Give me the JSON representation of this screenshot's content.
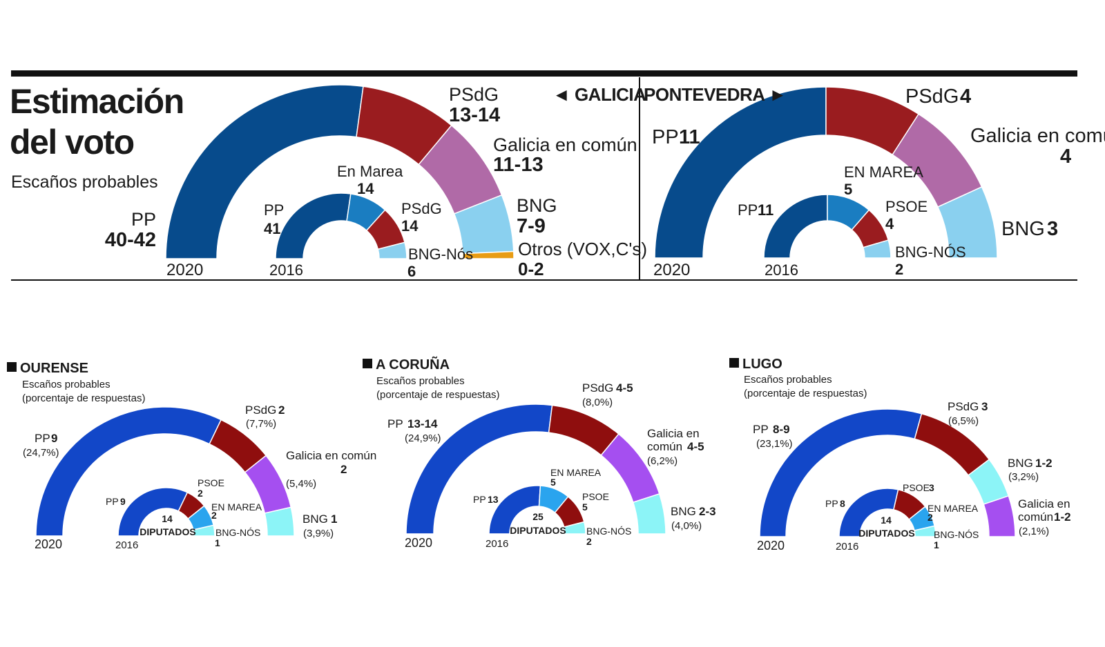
{
  "header": {
    "title_line1": "Estimación",
    "title_line2": "del voto",
    "subtitle": "Escaños probables"
  },
  "colors": {
    "pp": "#074b8c",
    "psdg": "#9a1c1f",
    "galicia": "#b06aa7",
    "bng": "#8ad0ef",
    "en_marea": "#1a7dc1",
    "otros": "#e89c14",
    "p_pp": "#1247c8",
    "p_psdg": "#8f0e0e",
    "p_galicia": "#a54ff0",
    "p_bng": "#8cf4f7",
    "p_en_marea": "#2aa4ee"
  },
  "chart_data": [
    {
      "type": "semicircle",
      "region": "GALICIA",
      "region_label": "◄ GALICIA",
      "year_outer": "2020",
      "year_inner": "2016",
      "outer": [
        {
          "name": "PP",
          "label": "40-42",
          "value": 41
        },
        {
          "name": "PSdG",
          "label": "13-14",
          "value": 13.5
        },
        {
          "name": "Galicia en común",
          "label": "11-13",
          "value": 12
        },
        {
          "name": "BNG",
          "label": "7-9",
          "value": 8
        },
        {
          "name": "Otros (VOX,C's)",
          "label": "0-2",
          "value": 1
        }
      ],
      "inner": [
        {
          "name": "PP",
          "label": "41",
          "value": 41
        },
        {
          "name": "En Marea",
          "label": "14",
          "value": 14
        },
        {
          "name": "PSdG",
          "label": "14",
          "value": 14
        },
        {
          "name": "BNG-Nós",
          "label": "6",
          "value": 6
        }
      ]
    },
    {
      "type": "semicircle",
      "region": "PONTEVEDRA",
      "region_label": "PONTEVEDRA ►",
      "year_outer": "2020",
      "year_inner": "2016",
      "outer": [
        {
          "name": "PP",
          "label": "11",
          "value": 11
        },
        {
          "name": "PSdG",
          "label": "4",
          "value": 4
        },
        {
          "name": "Galicia en común",
          "label": "4",
          "value": 4
        },
        {
          "name": "BNG",
          "label": "3",
          "value": 3
        }
      ],
      "inner": [
        {
          "name": "PP",
          "label": "11",
          "value": 11
        },
        {
          "name": "EN MAREA",
          "label": "5",
          "value": 5
        },
        {
          "name": "PSOE",
          "label": "4",
          "value": 4
        },
        {
          "name": "BNG-NÓS",
          "label": "2",
          "value": 2
        }
      ]
    },
    {
      "type": "semicircle",
      "region": "OURENSE",
      "subtitle1": "Escaños probables",
      "subtitle2": "(porcentaje de respuestas)",
      "year_outer": "2020",
      "year_inner": "2016",
      "diputados_count": "14",
      "diputados_label": "DIPUTADOS",
      "outer": [
        {
          "name": "PP",
          "label": "9",
          "pct": "(24,7%)",
          "value": 9
        },
        {
          "name": "PSdG",
          "label": "2",
          "pct": "(7,7%)",
          "value": 2
        },
        {
          "name": "Galicia en común",
          "label": "2",
          "pct": "(5,4%)",
          "value": 2
        },
        {
          "name": "BNG",
          "label": "1",
          "pct": "(3,9%)",
          "value": 1
        }
      ],
      "inner": [
        {
          "name": "PP",
          "label": "9",
          "value": 9
        },
        {
          "name": "PSOE",
          "label": "2",
          "value": 2
        },
        {
          "name": "EN MAREA",
          "label": "2",
          "value": 2
        },
        {
          "name": "BNG-NÓS",
          "label": "1",
          "value": 1
        }
      ]
    },
    {
      "type": "semicircle",
      "region": "A CORUÑA",
      "subtitle1": "Escaños probables",
      "subtitle2": "(porcentaje de respuestas)",
      "year_outer": "2020",
      "year_inner": "2016",
      "diputados_count": "25",
      "diputados_label": "DIPUTADOS",
      "outer": [
        {
          "name": "PP",
          "label": "13-14",
          "pct": "(24,9%)",
          "value": 13.5
        },
        {
          "name": "PSdG",
          "label": "4-5",
          "pct": "(8,0%)",
          "value": 4.5
        },
        {
          "name": "Galicia en común",
          "label": "4-5",
          "pct": "(6,2%)",
          "value": 4.5
        },
        {
          "name": "BNG",
          "label": "2-3",
          "pct": "(4,0%)",
          "value": 2.5
        }
      ],
      "inner": [
        {
          "name": "PP",
          "label": "13",
          "value": 13
        },
        {
          "name": "EN MAREA",
          "label": "5",
          "value": 5
        },
        {
          "name": "PSOE",
          "label": "5",
          "value": 5
        },
        {
          "name": "BNG-NÓS",
          "label": "2",
          "value": 2
        }
      ]
    },
    {
      "type": "semicircle",
      "region": "LUGO",
      "subtitle1": "Escaños probables",
      "subtitle2": "(porcentaje de respuestas)",
      "year_outer": "2020",
      "year_inner": "2016",
      "diputados_count": "14",
      "diputados_label": "DIPUTADOS",
      "outer": [
        {
          "name": "PP",
          "label": "8-9",
          "pct": "(23,1%)",
          "value": 8.5
        },
        {
          "name": "PSdG",
          "label": "3",
          "pct": "(6,5%)",
          "value": 3
        },
        {
          "name": "BNG",
          "label": "1-2",
          "pct": "(3,2%)",
          "value": 1.5
        },
        {
          "name": "Galicia en común",
          "label": "1-2",
          "pct": "(2,1%)",
          "value": 1.5
        }
      ],
      "inner": [
        {
          "name": "PP",
          "label": "8",
          "value": 8
        },
        {
          "name": "PSOE",
          "label": "3",
          "value": 3
        },
        {
          "name": "EN MAREA",
          "label": "2",
          "value": 2
        },
        {
          "name": "BNG-NÓS",
          "label": "1",
          "value": 1
        }
      ]
    }
  ]
}
